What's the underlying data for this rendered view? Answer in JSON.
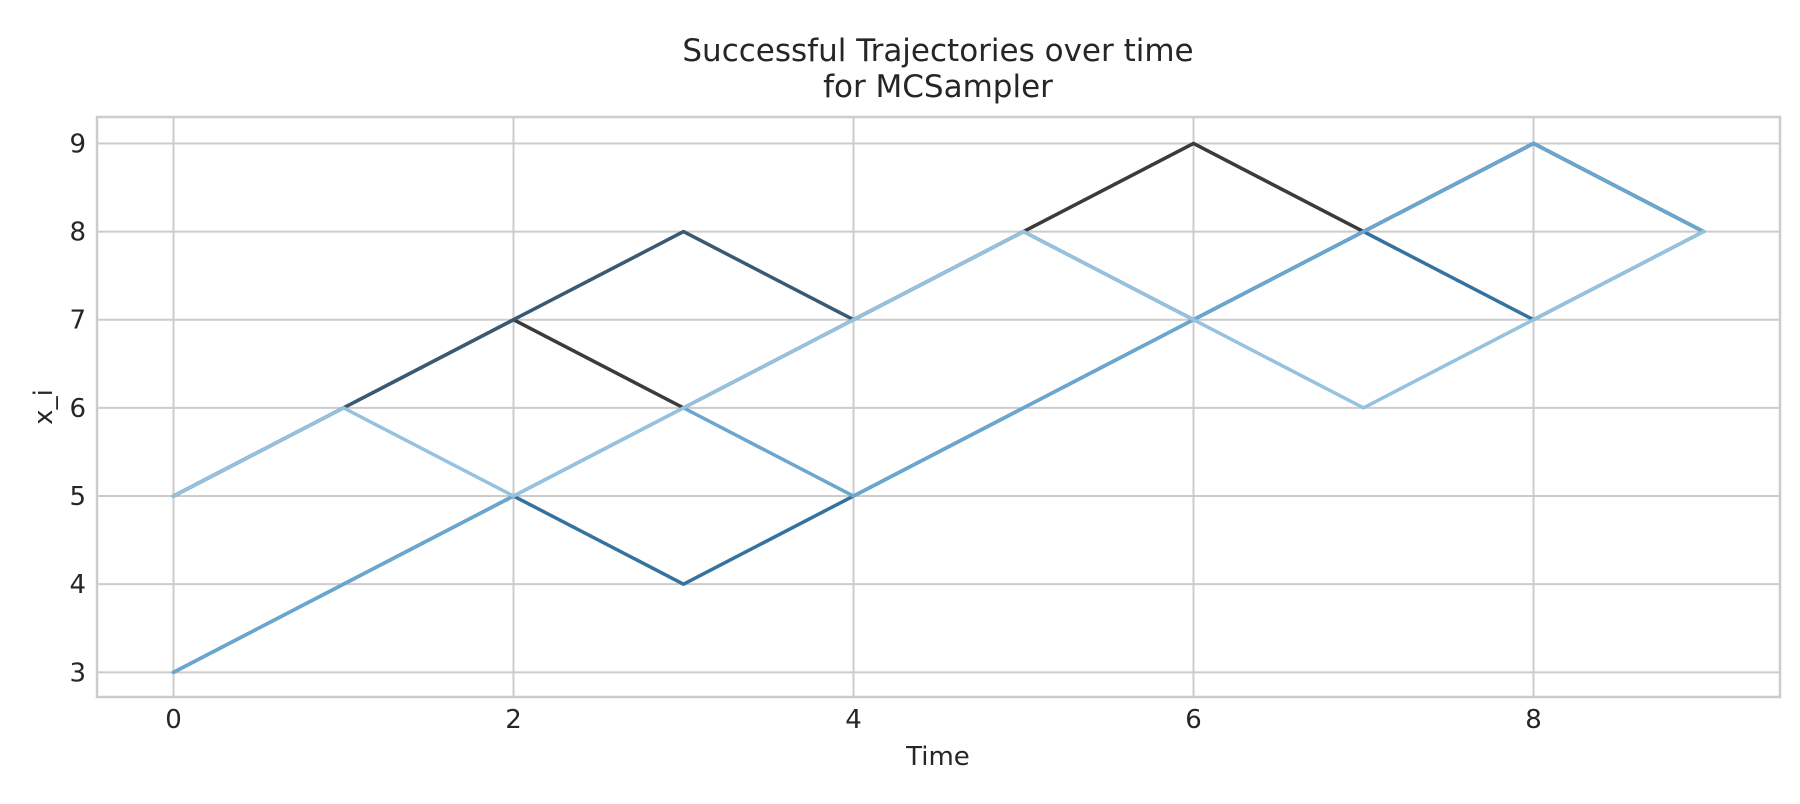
{
  "chart_data": {
    "type": "line",
    "title": [
      "Successful Trajectories over time",
      "for MCSampler"
    ],
    "xlabel": "Time",
    "ylabel": "x_i",
    "xlim": [
      -0.45,
      9.45
    ],
    "ylim": [
      2.72,
      9.3
    ],
    "xticks": [
      0,
      2,
      4,
      6,
      8
    ],
    "yticks": [
      3,
      4,
      5,
      6,
      7,
      8,
      9
    ],
    "grid": true,
    "legend": "none",
    "colors": {
      "grid": "#cccccc",
      "frame": "#cccccc",
      "text": "#262626",
      "background": "#ffffff"
    },
    "series": [
      {
        "color": "#3b3b3b",
        "x": [
          0,
          1,
          2,
          3,
          4,
          5,
          6,
          7,
          8,
          9
        ],
        "y": [
          5,
          6,
          7,
          6,
          7,
          8,
          9,
          8,
          9,
          8
        ]
      },
      {
        "color": "#3a5a74",
        "x": [
          0,
          1,
          2,
          3,
          4,
          5,
          6,
          7,
          8,
          9
        ],
        "y": [
          5,
          6,
          7,
          8,
          7,
          8,
          7,
          8,
          9,
          8
        ]
      },
      {
        "color": "#35729f",
        "x": [
          0,
          1,
          2,
          3,
          4,
          5,
          6,
          7,
          8,
          9
        ],
        "y": [
          3,
          4,
          5,
          4,
          5,
          6,
          7,
          8,
          7,
          8
        ]
      },
      {
        "color": "#6aa6cf",
        "x": [
          0,
          1,
          2,
          3,
          4,
          5,
          6,
          7,
          8,
          9
        ],
        "y": [
          3,
          4,
          5,
          6,
          5,
          6,
          7,
          8,
          9,
          8
        ]
      },
      {
        "color": "#96c2df",
        "x": [
          0,
          1,
          2,
          3,
          4,
          5,
          6,
          7,
          8,
          9
        ],
        "y": [
          5,
          6,
          5,
          6,
          7,
          8,
          7,
          6,
          7,
          8
        ]
      }
    ]
  }
}
